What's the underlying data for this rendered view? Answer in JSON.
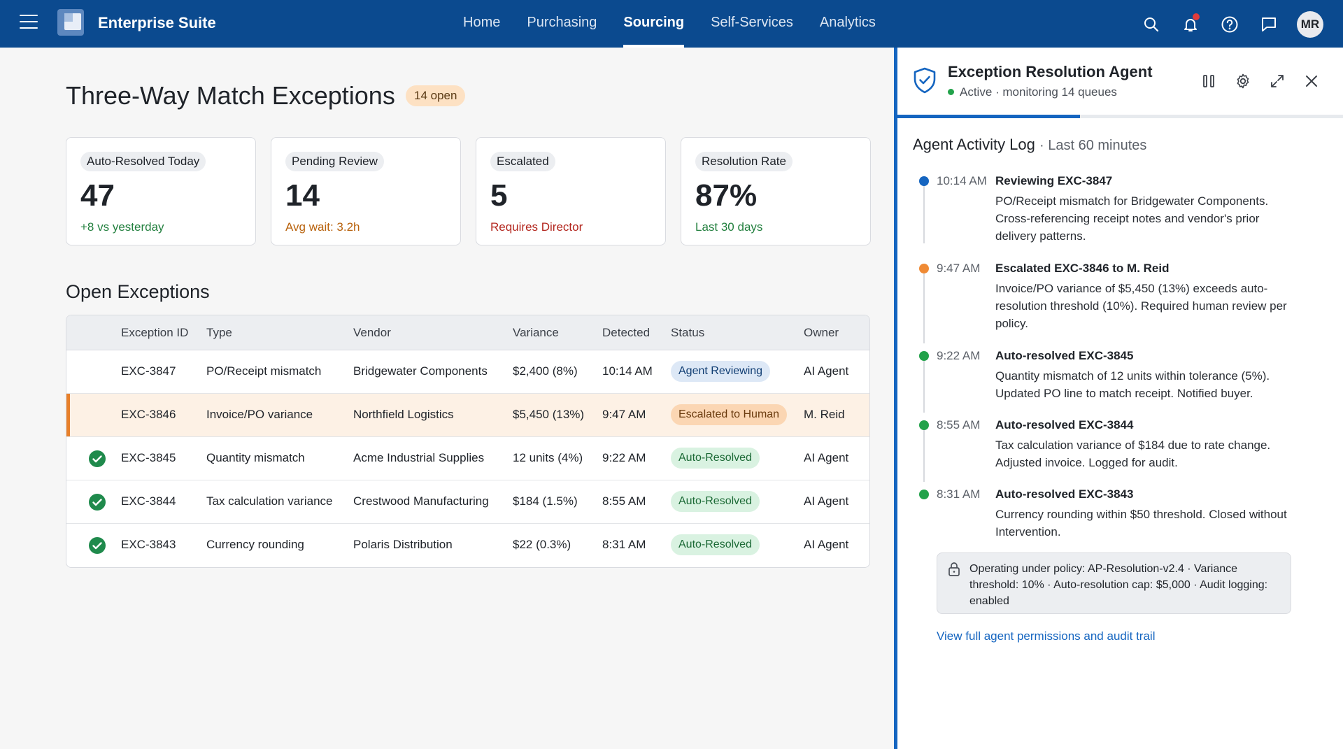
{
  "topbar": {
    "brand": "Enterprise Suite",
    "nav": [
      {
        "label": "Home",
        "active": false
      },
      {
        "label": "Purchasing",
        "active": false
      },
      {
        "label": "Sourcing",
        "active": true
      },
      {
        "label": "Self-Services",
        "active": false
      },
      {
        "label": "Analytics",
        "active": false
      }
    ],
    "icons": [
      "search-icon",
      "bell-icon",
      "help-icon",
      "chat-icon"
    ],
    "avatar_initials": "MR"
  },
  "main": {
    "title": "Three-Way Match Exceptions",
    "open_badge": "14 open",
    "stats": [
      {
        "label": "Auto-Resolved Today",
        "value": "47",
        "sub": "+8 vs yesterday",
        "sub_color": "#23803f"
      },
      {
        "label": "Pending Review",
        "value": "14",
        "sub": "Avg wait: 3.2h",
        "sub_color": "#b8620d"
      },
      {
        "label": "Escalated",
        "value": "5",
        "sub": "Requires Director",
        "sub_color": "#b3261e"
      },
      {
        "label": "Resolution Rate",
        "value": "87%",
        "sub": "Last 30 days",
        "sub_color": "#23803f"
      }
    ],
    "section_title": "Open Exceptions",
    "table": {
      "columns": [
        "Exception ID",
        "Type",
        "Vendor",
        "Variance",
        "Detected",
        "Status",
        "Owner"
      ],
      "rows": [
        {
          "id": "EXC-3847",
          "type": "PO/Receipt mismatch",
          "vendor": "Bridgewater Components",
          "variance": "$2,400 (8%)",
          "detected": "10:14 AM",
          "status": "Agent Reviewing",
          "owner": "AI Agent",
          "resolved": false
        },
        {
          "id": "EXC-3846",
          "type": "Invoice/PO variance",
          "vendor": "Northfield Logistics",
          "variance": "$5,450 (13%)",
          "detected": "9:47 AM",
          "status": "Escalated to Human",
          "owner": "M. Reid",
          "resolved": false
        },
        {
          "id": "EXC-3845",
          "type": "Quantity mismatch",
          "vendor": "Acme Industrial Supplies",
          "variance": "12 units (4%)",
          "detected": "9:22 AM",
          "status": "Auto-Resolved",
          "owner": "AI Agent",
          "resolved": true
        },
        {
          "id": "EXC-3844",
          "type": "Tax calculation variance",
          "vendor": "Crestwood Manufacturing",
          "variance": "$184 (1.5%)",
          "detected": "8:55 AM",
          "status": "Auto-Resolved",
          "owner": "AI Agent",
          "resolved": true
        },
        {
          "id": "EXC-3843",
          "type": "Currency rounding",
          "vendor": "Polaris Distribution",
          "variance": "$22 (0.3%)",
          "detected": "8:31 AM",
          "status": "Auto-Resolved",
          "owner": "AI Agent",
          "resolved": true
        }
      ]
    }
  },
  "agent_panel": {
    "title": "Exception Resolution Agent",
    "status": "Active · monitoring 14 queues",
    "progress_fraction": 0.41,
    "log_title": "Agent Activity Log",
    "log_subtitle": "· Last 60 minutes",
    "entries": [
      {
        "time": "10:14 AM",
        "title": "Reviewing EXC-3847",
        "body": "PO/Receipt mismatch for Bridgewater Components. Cross-referencing receipt notes and vendor's prior delivery patterns.",
        "color": "#1565c0"
      },
      {
        "time": "9:47 AM",
        "title": "Escalated EXC-3846 to M. Reid",
        "body": "Invoice/PO variance of $5,450 (13%) exceeds auto-resolution threshold (10%). Required human review per policy.",
        "color": "#ef8a34"
      },
      {
        "time": "9:22 AM",
        "title": "Auto-resolved EXC-3845",
        "body": "Quantity mismatch of 12 units within tolerance (5%). Updated PO line to match receipt. Notified buyer.",
        "color": "#22a24a"
      },
      {
        "time": "8:55 AM",
        "title": "Auto-resolved EXC-3844",
        "body": "Tax calculation variance of $184 due to rate change. Adjusted invoice. Logged for audit.",
        "color": "#22a24a"
      },
      {
        "time": "8:31 AM",
        "title": "Auto-resolved EXC-3843",
        "body": "Currency rounding within $50 threshold. Closed without Intervention.",
        "color": "#22a24a"
      }
    ],
    "policy_text": "Operating under policy: AP-Resolution-v2.4 · Variance threshold: 10% · Auto-resolution cap: $5,000 · Audit logging: enabled",
    "audit_link": "View full agent permissions and audit trail"
  }
}
